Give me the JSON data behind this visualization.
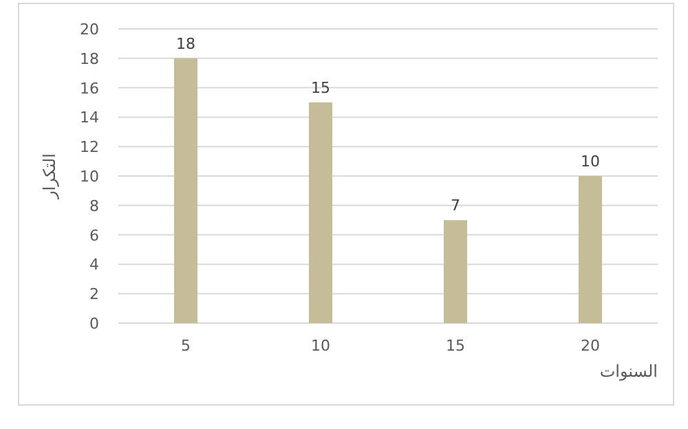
{
  "chart_data": {
    "type": "bar",
    "xlabel": "السنوات",
    "ylabel": "التكرار",
    "categories": [
      "5",
      "10",
      "15",
      "20"
    ],
    "values": [
      18,
      15,
      7,
      10
    ],
    "color": "#c4bd97",
    "ylim": [
      0,
      20
    ],
    "yticks": [
      0,
      2,
      4,
      6,
      8,
      10,
      12,
      14,
      16,
      18,
      20
    ],
    "grid": "y",
    "data_labels": true
  }
}
